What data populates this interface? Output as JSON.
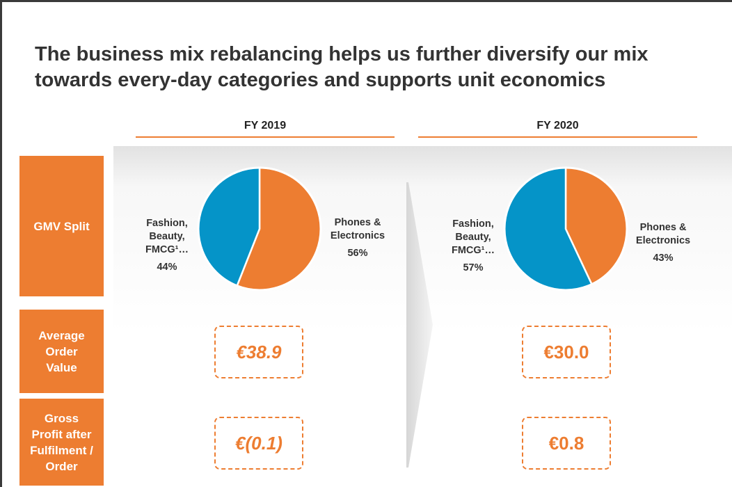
{
  "title": "The business mix rebalancing helps us further diversify our mix towards every-day categories and supports unit economics",
  "years": [
    "FY 2019",
    "FY 2020"
  ],
  "rows": {
    "gmv": "GMV Split",
    "aov": "Average\nOrder\nValue",
    "gp": "Gross\nProfit after\nFulfilment /\nOrder"
  },
  "colors": {
    "orange": "#ED7D31",
    "blue": "#0594C8"
  },
  "chart_data": [
    {
      "type": "pie",
      "title": "FY 2019",
      "slices": [
        {
          "label": "Phones &\nElectronics",
          "value": 56,
          "pct_label": "56%",
          "color": "#ED7D31"
        },
        {
          "label": "Fashion,\nBeauty,\nFMCG¹…",
          "value": 44,
          "pct_label": "44%",
          "color": "#0594C8"
        }
      ]
    },
    {
      "type": "pie",
      "title": "FY 2020",
      "slices": [
        {
          "label": "Phones &\nElectronics",
          "value": 43,
          "pct_label": "43%",
          "color": "#ED7D31"
        },
        {
          "label": "Fashion,\nBeauty,\nFMCG¹…",
          "value": 57,
          "pct_label": "57%",
          "color": "#0594C8"
        }
      ]
    }
  ],
  "metrics": {
    "fy2019": {
      "aov": "€38.9",
      "gp": "€(0.1)"
    },
    "fy2020": {
      "aov": "€30.0",
      "gp": "€0.8"
    }
  }
}
